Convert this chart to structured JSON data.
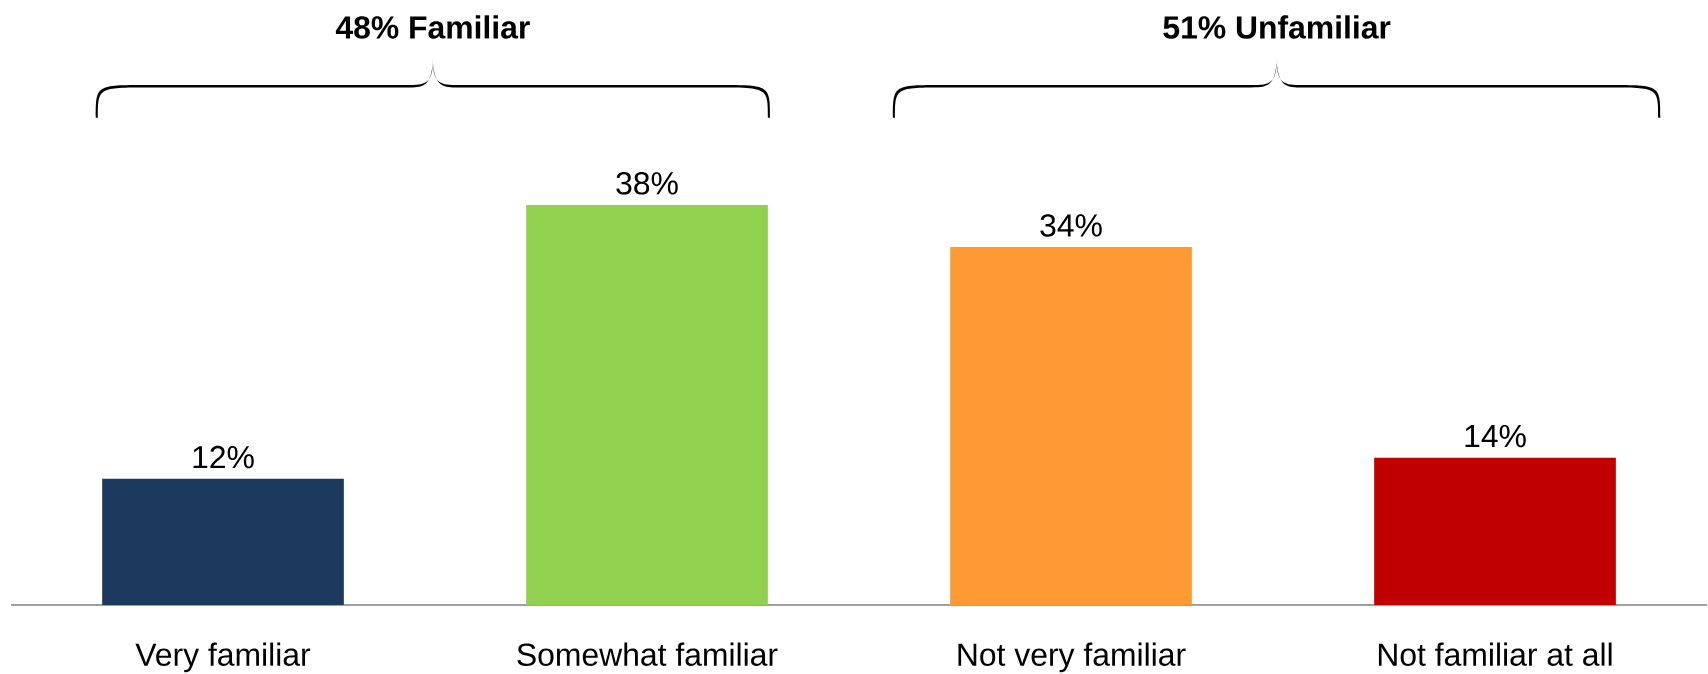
{
  "chart_data": {
    "type": "bar",
    "categories": [
      "Very familiar",
      "Somewhat familiar",
      "Not very familiar",
      "Not familiar at all"
    ],
    "values": [
      12,
      38,
      34,
      14
    ],
    "colors": [
      "#1b3a5e",
      "#92d050",
      "#ff9933",
      "#c00000"
    ],
    "value_labels": [
      "12%",
      "38%",
      "34%",
      "14%"
    ],
    "annotations": [
      "48% Familiar",
      "51% Unfamiliar"
    ]
  }
}
